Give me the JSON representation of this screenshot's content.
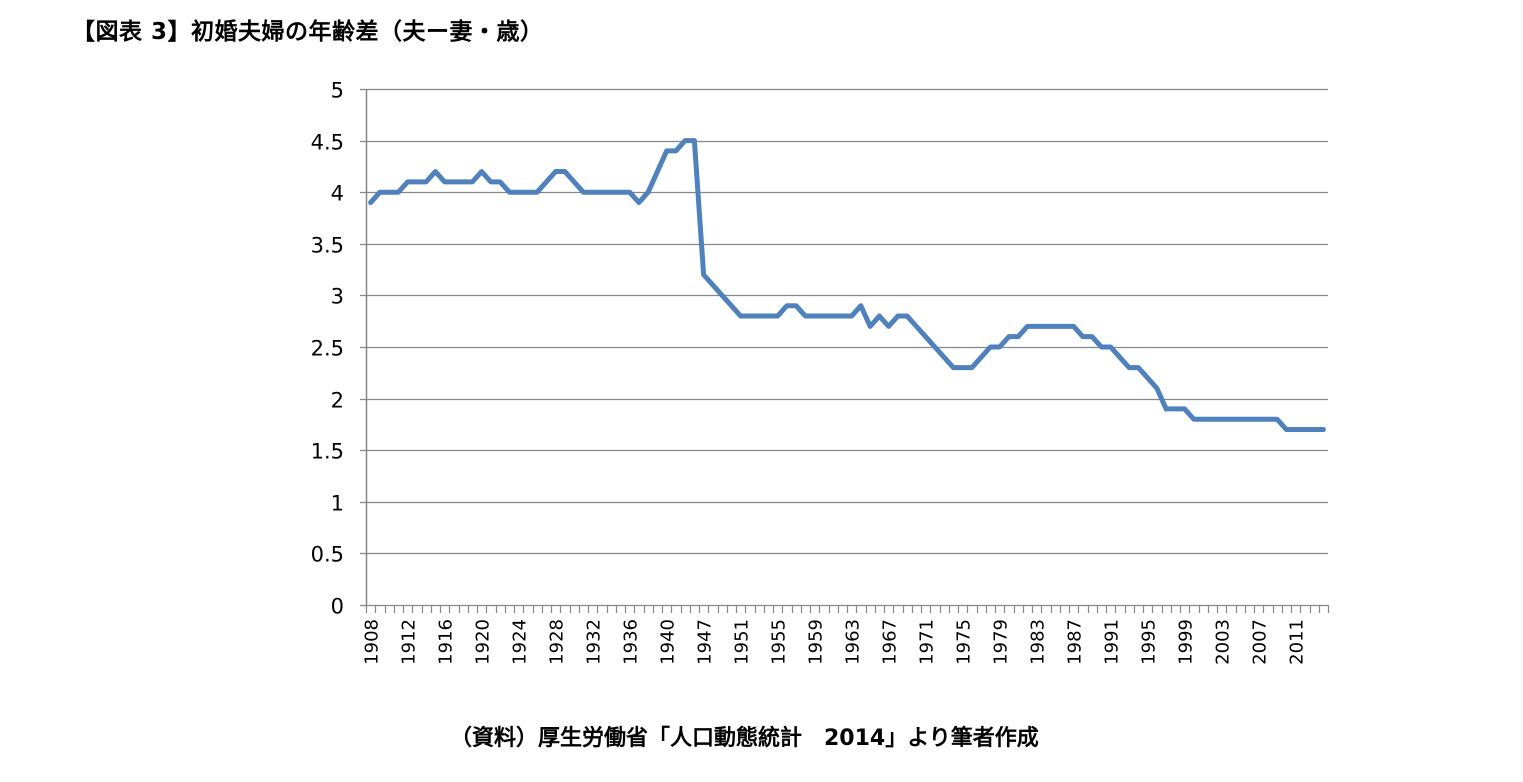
{
  "title": "【図表 3】初婚夫婦の年齢差（夫ー妻・歳）",
  "source": "（資料）厚生労働省「人口動態統計　2014」より筆者作成",
  "colors": {
    "line": "#4f81bd",
    "grid": "#868686",
    "axis": "#868686"
  },
  "chart_data": {
    "type": "line",
    "title": "【図表 3】初婚夫婦の年齢差（夫ー妻・歳）",
    "xlabel": "",
    "ylabel": "",
    "ylim": [
      0,
      5
    ],
    "yticks": [
      0,
      0.5,
      1,
      1.5,
      2,
      2.5,
      3,
      3.5,
      4,
      4.5,
      5
    ],
    "grid": true,
    "legend": null,
    "xtick_labels": [
      "1908",
      "1912",
      "1916",
      "1920",
      "1924",
      "1928",
      "1932",
      "1936",
      "1940",
      "1947",
      "1951",
      "1955",
      "1959",
      "1963",
      "1967",
      "1971",
      "1975",
      "1979",
      "1983",
      "1987",
      "1991",
      "1995",
      "1999",
      "2003",
      "2007",
      "2011"
    ],
    "x": [
      1908,
      1909,
      1910,
      1911,
      1912,
      1913,
      1914,
      1915,
      1916,
      1917,
      1918,
      1919,
      1920,
      1921,
      1922,
      1923,
      1924,
      1925,
      1926,
      1927,
      1928,
      1929,
      1930,
      1931,
      1932,
      1933,
      1934,
      1935,
      1936,
      1937,
      1938,
      1939,
      1940,
      1941,
      1942,
      1943,
      1947,
      1948,
      1949,
      1950,
      1951,
      1952,
      1953,
      1954,
      1955,
      1956,
      1957,
      1958,
      1959,
      1960,
      1961,
      1962,
      1963,
      1964,
      1965,
      1966,
      1967,
      1968,
      1969,
      1970,
      1971,
      1972,
      1973,
      1974,
      1975,
      1976,
      1977,
      1978,
      1979,
      1980,
      1981,
      1982,
      1983,
      1984,
      1985,
      1986,
      1987,
      1988,
      1989,
      1990,
      1991,
      1992,
      1993,
      1994,
      1995,
      1996,
      1997,
      1998,
      1999,
      2000,
      2001,
      2002,
      2003,
      2004,
      2005,
      2006,
      2007,
      2008,
      2009,
      2010,
      2011,
      2012,
      2013,
      2014
    ],
    "series": [
      {
        "name": "初婚夫婦の年齢差（夫ー妻）",
        "values": [
          3.9,
          4.0,
          4.0,
          4.0,
          4.1,
          4.1,
          4.1,
          4.2,
          4.1,
          4.1,
          4.1,
          4.1,
          4.2,
          4.1,
          4.1,
          4.0,
          4.0,
          4.0,
          4.0,
          4.1,
          4.2,
          4.2,
          4.1,
          4.0,
          4.0,
          4.0,
          4.0,
          4.0,
          4.0,
          3.9,
          4.0,
          4.2,
          4.4,
          4.4,
          4.5,
          4.5,
          3.2,
          3.1,
          3.0,
          2.9,
          2.8,
          2.8,
          2.8,
          2.8,
          2.8,
          2.9,
          2.9,
          2.8,
          2.8,
          2.8,
          2.8,
          2.8,
          2.8,
          2.9,
          2.7,
          2.8,
          2.7,
          2.8,
          2.8,
          2.7,
          2.6,
          2.5,
          2.4,
          2.3,
          2.3,
          2.3,
          2.4,
          2.5,
          2.5,
          2.6,
          2.6,
          2.7,
          2.7,
          2.7,
          2.7,
          2.7,
          2.7,
          2.6,
          2.6,
          2.5,
          2.5,
          2.4,
          2.3,
          2.3,
          2.2,
          2.1,
          1.9,
          1.9,
          1.9,
          1.8,
          1.8,
          1.8,
          1.8,
          1.8,
          1.8,
          1.8,
          1.8,
          1.8,
          1.8,
          1.7,
          1.7,
          1.7,
          1.7,
          1.7
        ]
      }
    ]
  }
}
